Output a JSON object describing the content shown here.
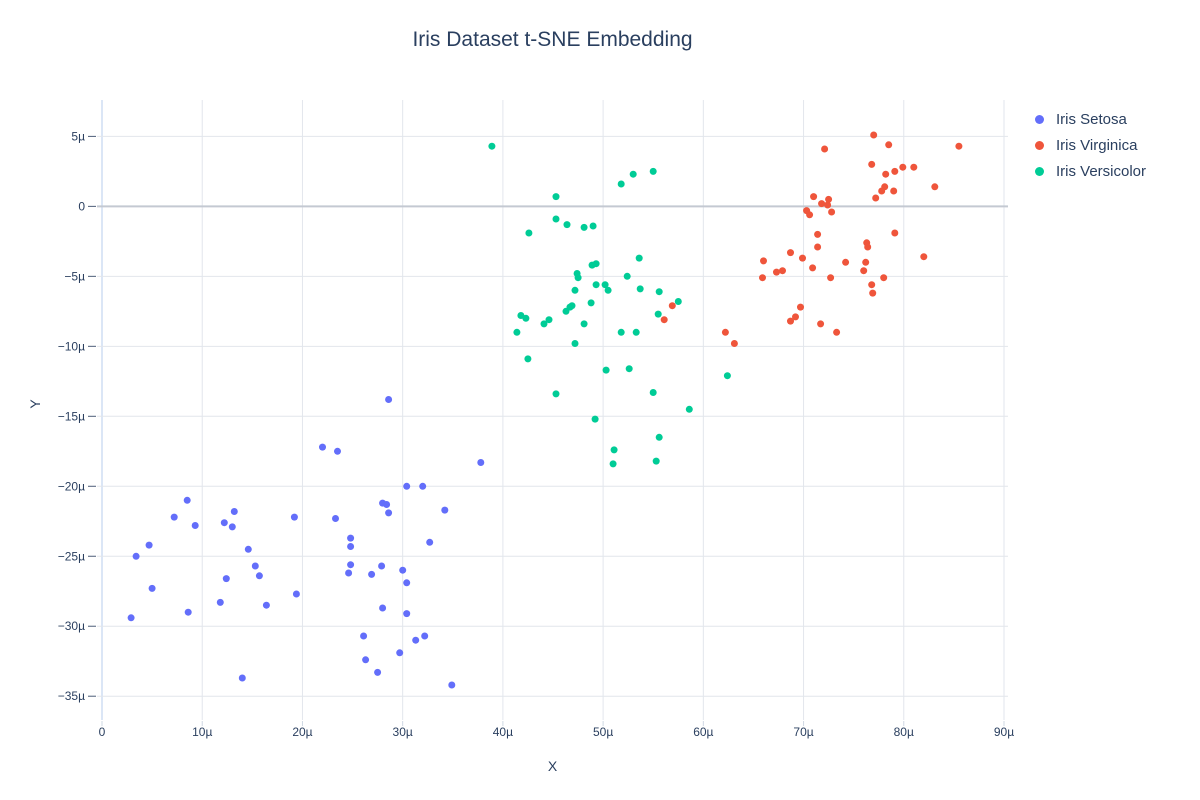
{
  "title": "Iris Dataset t-SNE Embedding",
  "axes": {
    "x_label": "X",
    "y_label": "Y"
  },
  "chart_data": {
    "type": "scatter",
    "title": "Iris Dataset t-SNE Embedding",
    "xlabel": "X",
    "ylabel": "Y",
    "grid": true,
    "legend_position": "right",
    "xlim": [
      -0.5,
      90.4
    ],
    "ylim": [
      -36.7,
      7.6
    ],
    "xtick_vals": [
      0,
      10,
      20,
      30,
      40,
      50,
      60,
      70,
      80,
      90
    ],
    "xtick_labels": [
      "0",
      "10µ",
      "20µ",
      "30µ",
      "40µ",
      "50µ",
      "60µ",
      "70µ",
      "80µ",
      "90µ"
    ],
    "ytick_vals": [
      5,
      0,
      -5,
      -10,
      -15,
      -20,
      -25,
      -30,
      -35
    ],
    "ytick_labels": [
      "5µ",
      "0",
      "−5µ",
      "−10µ",
      "−15µ",
      "−20µ",
      "−25µ",
      "−30µ",
      "−35µ"
    ],
    "colors": {
      "grid": "#e2e6ec",
      "zeroline_x": "#dbe6f6",
      "zeroline_y": "#c4c9d2",
      "text": "#2a3f5f",
      "x_tick_mark": "#cfd8e3",
      "y_tick_mark": "#4c5c77"
    },
    "series": [
      {
        "name": "Iris Setosa",
        "color": "#636EFA",
        "points": [
          [
            8.5,
            -21.0
          ],
          [
            7.2,
            -22.2
          ],
          [
            9.3,
            -22.8
          ],
          [
            13.2,
            -21.8
          ],
          [
            12.2,
            -22.6
          ],
          [
            13.0,
            -22.9
          ],
          [
            19.2,
            -22.2
          ],
          [
            4.7,
            -24.2
          ],
          [
            3.4,
            -25.0
          ],
          [
            14.6,
            -24.5
          ],
          [
            15.3,
            -25.7
          ],
          [
            15.7,
            -26.4
          ],
          [
            12.4,
            -26.6
          ],
          [
            5.0,
            -27.3
          ],
          [
            19.4,
            -27.7
          ],
          [
            11.8,
            -28.3
          ],
          [
            16.4,
            -28.5
          ],
          [
            8.6,
            -29.0
          ],
          [
            2.9,
            -29.4
          ],
          [
            14.0,
            -33.7
          ],
          [
            22.0,
            -17.2
          ],
          [
            23.5,
            -17.5
          ],
          [
            37.8,
            -18.3
          ],
          [
            30.4,
            -20.0
          ],
          [
            32.0,
            -20.0
          ],
          [
            28.0,
            -21.2
          ],
          [
            28.4,
            -21.3
          ],
          [
            28.6,
            -21.9
          ],
          [
            34.2,
            -21.7
          ],
          [
            23.3,
            -22.3
          ],
          [
            24.8,
            -23.7
          ],
          [
            24.8,
            -24.3
          ],
          [
            32.7,
            -24.0
          ],
          [
            24.8,
            -25.6
          ],
          [
            24.6,
            -26.2
          ],
          [
            27.9,
            -25.7
          ],
          [
            26.9,
            -26.3
          ],
          [
            30.0,
            -26.0
          ],
          [
            30.4,
            -26.9
          ],
          [
            28.0,
            -28.7
          ],
          [
            30.4,
            -29.1
          ],
          [
            26.1,
            -30.7
          ],
          [
            31.3,
            -31.0
          ],
          [
            32.2,
            -30.7
          ],
          [
            29.7,
            -31.9
          ],
          [
            26.3,
            -32.4
          ],
          [
            27.5,
            -33.3
          ],
          [
            34.9,
            -34.2
          ],
          [
            28.6,
            -13.8
          ]
        ]
      },
      {
        "name": "Iris Virginica",
        "color": "#EF553B",
        "points": [
          [
            77.0,
            5.1
          ],
          [
            78.5,
            4.4
          ],
          [
            85.5,
            4.3
          ],
          [
            72.1,
            4.1
          ],
          [
            76.8,
            3.0
          ],
          [
            78.2,
            2.3
          ],
          [
            79.1,
            2.5
          ],
          [
            79.9,
            2.8
          ],
          [
            81.0,
            2.8
          ],
          [
            78.1,
            1.4
          ],
          [
            77.8,
            1.1
          ],
          [
            79.0,
            1.1
          ],
          [
            83.1,
            1.4
          ],
          [
            77.2,
            0.6
          ],
          [
            71.0,
            0.7
          ],
          [
            71.8,
            0.2
          ],
          [
            72.5,
            0.5
          ],
          [
            72.4,
            0.1
          ],
          [
            70.3,
            -0.3
          ],
          [
            70.6,
            -0.6
          ],
          [
            72.8,
            -0.4
          ],
          [
            71.4,
            -2.0
          ],
          [
            79.1,
            -1.9
          ],
          [
            76.3,
            -2.6
          ],
          [
            76.4,
            -2.9
          ],
          [
            71.4,
            -2.9
          ],
          [
            68.7,
            -3.3
          ],
          [
            66.0,
            -3.9
          ],
          [
            69.9,
            -3.7
          ],
          [
            70.9,
            -4.4
          ],
          [
            74.2,
            -4.0
          ],
          [
            76.2,
            -4.0
          ],
          [
            76.0,
            -4.6
          ],
          [
            82.0,
            -3.6
          ],
          [
            65.9,
            -5.1
          ],
          [
            67.3,
            -4.7
          ],
          [
            67.9,
            -4.6
          ],
          [
            72.7,
            -5.1
          ],
          [
            78.0,
            -5.1
          ],
          [
            76.8,
            -5.6
          ],
          [
            76.9,
            -6.2
          ],
          [
            69.7,
            -7.2
          ],
          [
            69.2,
            -7.9
          ],
          [
            68.7,
            -8.2
          ],
          [
            71.7,
            -8.4
          ],
          [
            73.3,
            -9.0
          ],
          [
            56.9,
            -7.1
          ],
          [
            56.1,
            -8.1
          ],
          [
            62.2,
            -9.0
          ],
          [
            63.1,
            -9.8
          ]
        ]
      },
      {
        "name": "Iris Versicolor",
        "color": "#00CC96",
        "points": [
          [
            38.9,
            4.3
          ],
          [
            45.3,
            0.7
          ],
          [
            45.3,
            -0.9
          ],
          [
            46.4,
            -1.3
          ],
          [
            42.6,
            -1.9
          ],
          [
            47.4,
            -4.8
          ],
          [
            47.5,
            -5.1
          ],
          [
            47.2,
            -6.0
          ],
          [
            46.9,
            -7.1
          ],
          [
            51.8,
            1.6
          ],
          [
            53.0,
            2.3
          ],
          [
            55.0,
            2.5
          ],
          [
            48.1,
            -1.5
          ],
          [
            49.0,
            -1.4
          ],
          [
            53.6,
            -3.7
          ],
          [
            48.9,
            -4.2
          ],
          [
            49.3,
            -4.1
          ],
          [
            52.4,
            -5.0
          ],
          [
            49.3,
            -5.6
          ],
          [
            50.2,
            -5.6
          ],
          [
            50.5,
            -6.0
          ],
          [
            53.7,
            -5.9
          ],
          [
            55.6,
            -6.1
          ],
          [
            48.8,
            -6.9
          ],
          [
            57.5,
            -6.8
          ],
          [
            41.8,
            -7.8
          ],
          [
            42.3,
            -8.0
          ],
          [
            41.4,
            -9.0
          ],
          [
            44.1,
            -8.4
          ],
          [
            44.6,
            -8.1
          ],
          [
            46.3,
            -7.5
          ],
          [
            46.7,
            -7.2
          ],
          [
            47.2,
            -9.8
          ],
          [
            42.5,
            -10.9
          ],
          [
            45.3,
            -13.4
          ],
          [
            48.1,
            -8.4
          ],
          [
            55.5,
            -7.7
          ],
          [
            51.8,
            -9.0
          ],
          [
            53.3,
            -9.0
          ],
          [
            50.3,
            -11.7
          ],
          [
            52.6,
            -11.6
          ],
          [
            62.4,
            -12.1
          ],
          [
            55.0,
            -13.3
          ],
          [
            58.6,
            -14.5
          ],
          [
            49.2,
            -15.2
          ],
          [
            55.6,
            -16.5
          ],
          [
            51.1,
            -17.4
          ],
          [
            51.0,
            -18.4
          ],
          [
            55.3,
            -18.2
          ]
        ]
      }
    ]
  }
}
